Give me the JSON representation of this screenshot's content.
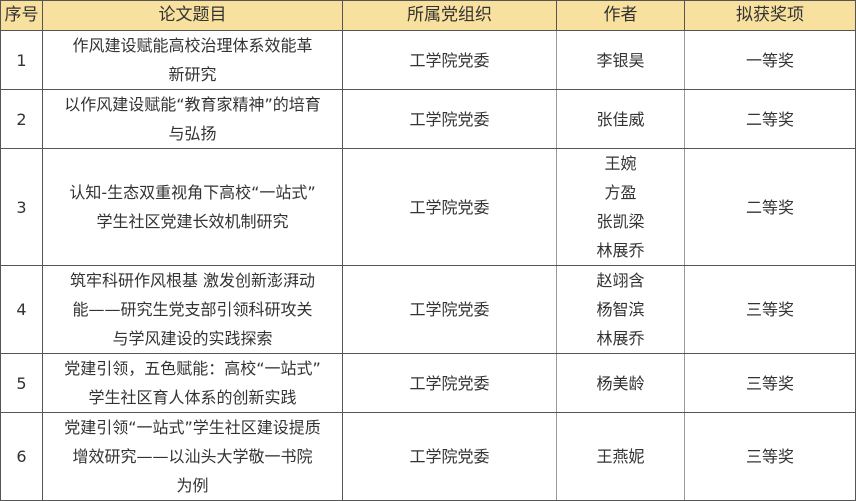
{
  "header": {
    "index": "序号",
    "title": "论文题目",
    "org": "所属党组织",
    "author": "作者",
    "award": "拟获奖项"
  },
  "header_bg": "#f8e09e",
  "rows": [
    {
      "index": "1",
      "title": [
        "作风建设赋能高校治理体系效能革",
        "新研究"
      ],
      "org": "工学院党委",
      "authors": [
        "李银昊"
      ],
      "award": "一等奖"
    },
    {
      "index": "2",
      "title": [
        "以作风建设赋能“教育家精神”的培育",
        "与弘扬"
      ],
      "org": "工学院党委",
      "authors": [
        "张佳威"
      ],
      "award": "二等奖"
    },
    {
      "index": "3",
      "title": [
        "认知-生态双重视角下高校“一站式”",
        "学生社区党建长效机制研究"
      ],
      "org": "工学院党委",
      "authors": [
        "王婉",
        "方盈",
        "张凯梁",
        "林展乔"
      ],
      "award": "二等奖"
    },
    {
      "index": "4",
      "title": [
        "筑牢科研作风根基 激发创新澎湃动",
        "能——研究生党支部引领科研攻关",
        "与学风建设的实践探索"
      ],
      "org": "工学院党委",
      "authors": [
        "赵翊含",
        "杨智滨",
        "林展乔"
      ],
      "award": "三等奖"
    },
    {
      "index": "5",
      "title": [
        "党建引领，五色赋能：高校“一站式”",
        "学生社区育人体系的创新实践"
      ],
      "org": "工学院党委",
      "authors": [
        "杨美龄"
      ],
      "award": "三等奖"
    },
    {
      "index": "6",
      "title": [
        "党建引领“一站式”学生社区建设提质",
        "增效研究——以汕头大学敬一书院",
        "为例"
      ],
      "org": "工学院党委",
      "authors": [
        "王燕妮"
      ],
      "award": "三等奖"
    }
  ]
}
